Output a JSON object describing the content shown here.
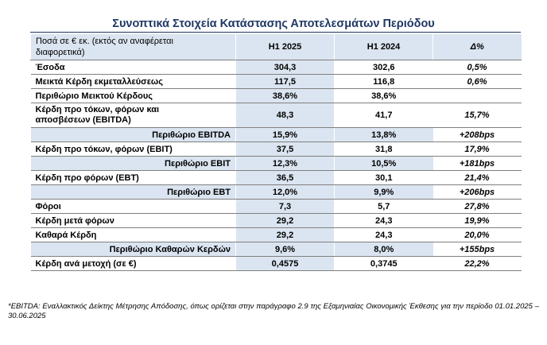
{
  "title": "Συνοπτικά Στοιχεία Κατάστασης Αποτελεσμάτων Περιόδου",
  "header": {
    "label_line1": "Ποσά σε € εκ. (εκτός αν αναφέρεται",
    "label_line2": "διαφορετικά)",
    "col1": "H1 2025",
    "col2": "H1 2024",
    "col3": "Δ%"
  },
  "rows": [
    {
      "label": "Έσοδα",
      "v1": "304,3",
      "v2": "302,6",
      "d": "0,5%",
      "sub": false,
      "tall": false
    },
    {
      "label": "Μεικτά Κέρδη εκμεταλλεύσεως",
      "v1": "117,5",
      "v2": "116,8",
      "d": "0,6%",
      "sub": false,
      "tall": false
    },
    {
      "label": "Περιθώριο Μεικτού Κέρδους",
      "v1": "38,6%",
      "v2": "38,6%",
      "d": "",
      "sub": false,
      "tall": false
    },
    {
      "label": "Κέρδη προ τόκων, φόρων και",
      "label2": "αποσβέσεων (EBITDA)",
      "v1": "48,3",
      "v2": "41,7",
      "d": "15,7%",
      "sub": false,
      "tall": true
    },
    {
      "label": "Περιθώριο EBITDA",
      "v1": "15,9%",
      "v2": "13,8%",
      "d": "+208bps",
      "sub": true,
      "tall": false
    },
    {
      "label": "Κέρδη προ τόκων, φόρων (EBIT)",
      "v1": "37,5",
      "v2": "31,8",
      "d": "17,9%",
      "sub": false,
      "tall": false
    },
    {
      "label": "Περιθώριο EBIT",
      "v1": "12,3%",
      "v2": "10,5%",
      "d": "+181bps",
      "sub": true,
      "tall": false
    },
    {
      "label": "Κέρδη προ φόρων (EBT)",
      "v1": "36,5",
      "v2": "30,1",
      "d": "21,4%",
      "sub": false,
      "tall": false
    },
    {
      "label": "Περιθώριο EBT",
      "v1": "12,0%",
      "v2": "9,9%",
      "d": "+206bps",
      "sub": true,
      "tall": false
    },
    {
      "label": "Φόροι",
      "v1": "7,3",
      "v2": "5,7",
      "d": "27,8%",
      "sub": false,
      "tall": false
    },
    {
      "label": "Κέρδη μετά φόρων",
      "v1": "29,2",
      "v2": "24,3",
      "d": "19,9%",
      "sub": false,
      "tall": false
    },
    {
      "label": "Καθαρά Κέρδη",
      "v1": "29,2",
      "v2": "24,3",
      "d": "20,0%",
      "sub": false,
      "tall": false
    },
    {
      "label": "Περιθώριο Καθαρών Κερδών",
      "v1": "9,6%",
      "v2": "8,0%",
      "d": "+155bps",
      "sub": true,
      "tall": false
    },
    {
      "label": "Κέρδη ανά μετοχή (σε €)",
      "v1": "0,4575",
      "v2": "0,3745",
      "d": "22,2%",
      "sub": false,
      "tall": false
    }
  ],
  "footnote": "*EBITDA: Εναλλακτικός Δείκτης Μέτρησης Απόδοσης, όπως ορίζεται στην παράγραφο 2.9 της Εξαμηνιαίας Οικονομικής Έκθεσης για την περίοδο 01.01.2025 – 30.06.2025"
}
